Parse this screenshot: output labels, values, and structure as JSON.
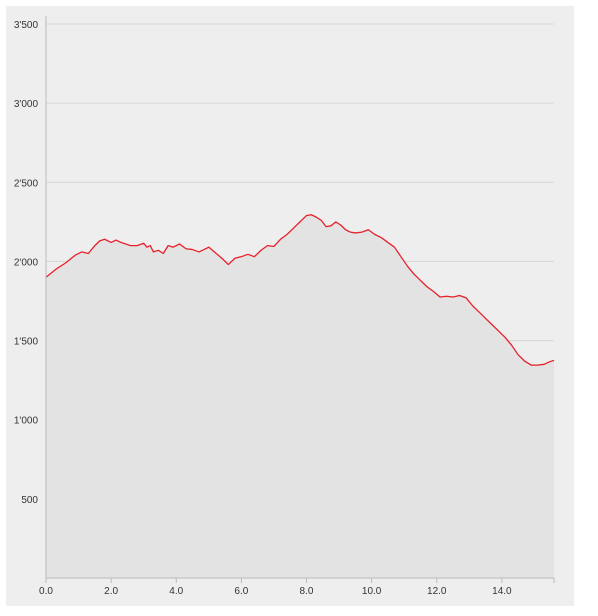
{
  "chart_data": {
    "type": "area",
    "title": "",
    "xlabel": "",
    "ylabel": "",
    "xlim": [
      0,
      15.6
    ],
    "ylim": [
      0,
      3500
    ],
    "grid": true,
    "legend": "none",
    "x_ticks": [
      {
        "value": 0,
        "label": "0.0"
      },
      {
        "value": 2,
        "label": "2.0"
      },
      {
        "value": 4,
        "label": "4.0"
      },
      {
        "value": 6,
        "label": "6.0"
      },
      {
        "value": 8,
        "label": "8.0"
      },
      {
        "value": 10,
        "label": "10.0"
      },
      {
        "value": 12,
        "label": "12.0"
      },
      {
        "value": 14,
        "label": "14.0"
      }
    ],
    "y_ticks": [
      {
        "value": 500,
        "label": "500"
      },
      {
        "value": 1000,
        "label": "1'000"
      },
      {
        "value": 1500,
        "label": "1'500"
      },
      {
        "value": 2000,
        "label": "2'000"
      },
      {
        "value": 2500,
        "label": "2'500"
      },
      {
        "value": 3000,
        "label": "3'000"
      },
      {
        "value": 3500,
        "label": "3'500"
      }
    ],
    "colors": {
      "line": "#e8202a",
      "fill": "#e3e3e3",
      "plot_bg": "#eeeeee",
      "grid": "#d6d6d6",
      "axis": "#bbbbbb"
    },
    "series": [
      {
        "x": [
          0.0,
          0.3,
          0.6,
          0.9,
          1.1,
          1.3,
          1.5,
          1.65,
          1.8,
          2.0,
          2.15,
          2.3,
          2.45,
          2.6,
          2.8,
          3.0,
          3.1,
          3.2,
          3.3,
          3.45,
          3.6,
          3.75,
          3.9,
          4.1,
          4.3,
          4.5,
          4.7,
          4.85,
          5.0,
          5.2,
          5.4,
          5.6,
          5.8,
          6.0,
          6.2,
          6.4,
          6.6,
          6.8,
          7.0,
          7.2,
          7.4,
          7.6,
          7.8,
          8.0,
          8.15,
          8.3,
          8.45,
          8.6,
          8.75,
          8.9,
          9.05,
          9.2,
          9.35,
          9.5,
          9.7,
          9.9,
          10.1,
          10.3,
          10.5,
          10.7,
          10.9,
          11.1,
          11.3,
          11.5,
          11.7,
          11.9,
          12.1,
          12.3,
          12.5,
          12.7,
          12.9,
          13.1,
          13.3,
          13.5,
          13.7,
          13.9,
          14.1,
          14.3,
          14.5,
          14.7,
          14.9,
          15.1,
          15.3,
          15.45,
          15.6
        ],
        "y": [
          1900,
          1950,
          1990,
          2040,
          2060,
          2050,
          2100,
          2130,
          2140,
          2120,
          2135,
          2120,
          2110,
          2100,
          2100,
          2115,
          2090,
          2100,
          2060,
          2070,
          2050,
          2100,
          2090,
          2110,
          2080,
          2075,
          2060,
          2075,
          2090,
          2055,
          2020,
          1980,
          2020,
          2030,
          2045,
          2030,
          2070,
          2100,
          2095,
          2140,
          2170,
          2210,
          2250,
          2290,
          2295,
          2280,
          2260,
          2220,
          2225,
          2250,
          2230,
          2200,
          2185,
          2180,
          2185,
          2200,
          2170,
          2150,
          2120,
          2090,
          2030,
          1970,
          1920,
          1880,
          1840,
          1810,
          1775,
          1780,
          1775,
          1785,
          1770,
          1720,
          1680,
          1640,
          1600,
          1560,
          1520,
          1470,
          1410,
          1370,
          1345,
          1345,
          1350,
          1365,
          1375
        ]
      }
    ]
  }
}
